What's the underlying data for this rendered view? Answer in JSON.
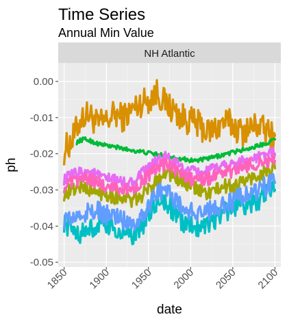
{
  "chart_data": {
    "type": "line",
    "title": "Time Series",
    "subtitle": "Annual Min Value",
    "facet": "NH Atlantic",
    "xlabel": "date",
    "ylabel": "ph",
    "xlim": [
      1843,
      2107
    ],
    "ylim": [
      -0.0513,
      0.0051
    ],
    "xticks": [
      1850,
      1900,
      1950,
      2000,
      2050,
      2100
    ],
    "yticks": [
      0.0,
      -0.01,
      -0.02,
      -0.03,
      -0.04,
      -0.05
    ],
    "ytick_labels": [
      "0.00",
      "-0.01",
      "-0.02",
      "-0.03",
      "-0.04",
      "-0.05"
    ],
    "grid": true,
    "legend": "none",
    "series": [
      {
        "color": "#D89000",
        "x": [
          1850,
          1860,
          1870,
          1880,
          1890,
          1900,
          1910,
          1920,
          1930,
          1940,
          1950,
          1960,
          1970,
          1980,
          1990,
          2000,
          2010,
          2020,
          2030,
          2040,
          2050,
          2060,
          2070,
          2080,
          2090,
          2100
        ],
        "y": [
          -0.019,
          -0.016,
          -0.01,
          -0.009,
          -0.012,
          -0.011,
          -0.009,
          -0.01,
          -0.008,
          -0.006,
          -0.005,
          -0.003,
          -0.006,
          -0.008,
          -0.01,
          -0.011,
          -0.012,
          -0.014,
          -0.013,
          -0.011,
          -0.012,
          -0.014,
          -0.013,
          -0.012,
          -0.014,
          -0.015
        ],
        "amp": 0.004
      },
      {
        "color": "#00BA38",
        "x": [
          1865,
          1870,
          1875,
          1880,
          1885,
          1890,
          1900,
          1910,
          1920,
          1930,
          1940,
          1950,
          1960,
          1970,
          1980,
          1990,
          2000,
          2010,
          2020,
          2030,
          2040,
          2050,
          2060,
          2070,
          2080,
          2090,
          2100
        ],
        "y": [
          -0.0168,
          -0.0162,
          -0.016,
          -0.0163,
          -0.0168,
          -0.0172,
          -0.0177,
          -0.0181,
          -0.0186,
          -0.019,
          -0.0194,
          -0.0198,
          -0.0202,
          -0.0206,
          -0.021,
          -0.0214,
          -0.0218,
          -0.0218,
          -0.0214,
          -0.0208,
          -0.0202,
          -0.0196,
          -0.019,
          -0.0185,
          -0.0178,
          -0.017,
          -0.016
        ],
        "amp": 0.0006
      },
      {
        "color": "#A3A500",
        "x": [
          1850,
          1860,
          1870,
          1880,
          1890,
          1900,
          1910,
          1920,
          1930,
          1940,
          1950,
          1960,
          1970,
          1980,
          1990,
          2000,
          2010,
          2020,
          2030,
          2040,
          2050,
          2060,
          2070,
          2080,
          2090,
          2100
        ],
        "y": [
          -0.031,
          -0.03,
          -0.029,
          -0.03,
          -0.031,
          -0.031,
          -0.032,
          -0.032,
          -0.033,
          -0.032,
          -0.03,
          -0.027,
          -0.025,
          -0.026,
          -0.028,
          -0.029,
          -0.03,
          -0.031,
          -0.03,
          -0.029,
          -0.029,
          -0.028,
          -0.027,
          -0.026,
          -0.025,
          -0.024
        ],
        "amp": 0.002
      },
      {
        "color": "#E76BF3",
        "x": [
          1850,
          1860,
          1870,
          1880,
          1890,
          1900,
          1910,
          1920,
          1930,
          1940,
          1950,
          1960,
          1970,
          1980,
          1990,
          2000,
          2010,
          2020,
          2030,
          2040,
          2050,
          2060,
          2070,
          2080,
          2090,
          2100
        ],
        "y": [
          -0.027,
          -0.026,
          -0.025,
          -0.025,
          -0.026,
          -0.027,
          -0.027,
          -0.028,
          -0.028,
          -0.026,
          -0.024,
          -0.022,
          -0.021,
          -0.022,
          -0.024,
          -0.025,
          -0.025,
          -0.025,
          -0.024,
          -0.023,
          -0.023,
          -0.022,
          -0.022,
          -0.021,
          -0.02,
          -0.02
        ],
        "amp": 0.0016
      },
      {
        "color": "#FF62BC",
        "x": [
          1850,
          1860,
          1870,
          1880,
          1890,
          1900,
          1910,
          1920,
          1930,
          1940,
          1950,
          1960,
          1970,
          1980,
          1990,
          2000,
          2010,
          2020,
          2030,
          2040,
          2050,
          2060,
          2070,
          2080,
          2090,
          2100
        ],
        "y": [
          -0.029,
          -0.028,
          -0.027,
          -0.027,
          -0.028,
          -0.029,
          -0.029,
          -0.03,
          -0.03,
          -0.028,
          -0.026,
          -0.024,
          -0.023,
          -0.024,
          -0.026,
          -0.027,
          -0.027,
          -0.027,
          -0.026,
          -0.025,
          -0.025,
          -0.024,
          -0.023,
          -0.023,
          -0.022,
          -0.022
        ],
        "amp": 0.0018
      },
      {
        "color": "#00BFC4",
        "x": [
          1850,
          1860,
          1870,
          1880,
          1890,
          1900,
          1910,
          1920,
          1930,
          1940,
          1950,
          1960,
          1970,
          1980,
          1990,
          2000,
          2010,
          2020,
          2030,
          2040,
          2050,
          2060,
          2070,
          2080,
          2090,
          2100
        ],
        "y": [
          -0.039,
          -0.041,
          -0.042,
          -0.041,
          -0.04,
          -0.04,
          -0.041,
          -0.042,
          -0.043,
          -0.041,
          -0.037,
          -0.034,
          -0.033,
          -0.036,
          -0.039,
          -0.04,
          -0.04,
          -0.039,
          -0.038,
          -0.036,
          -0.035,
          -0.034,
          -0.034,
          -0.033,
          -0.031,
          -0.03
        ],
        "amp": 0.0028
      },
      {
        "color": "#619CFF",
        "x": [
          1850,
          1860,
          1870,
          1880,
          1890,
          1900,
          1910,
          1920,
          1930,
          1940,
          1950,
          1960,
          1970,
          1980,
          1990,
          2000,
          2010,
          2020,
          2030,
          2040,
          2050,
          2060,
          2070,
          2080,
          2090,
          2100
        ],
        "y": [
          -0.038,
          -0.038,
          -0.037,
          -0.036,
          -0.036,
          -0.037,
          -0.037,
          -0.038,
          -0.039,
          -0.038,
          -0.034,
          -0.031,
          -0.03,
          -0.032,
          -0.035,
          -0.036,
          -0.036,
          -0.036,
          -0.035,
          -0.034,
          -0.033,
          -0.032,
          -0.031,
          -0.03,
          -0.029,
          -0.028
        ],
        "amp": 0.0028
      }
    ]
  }
}
